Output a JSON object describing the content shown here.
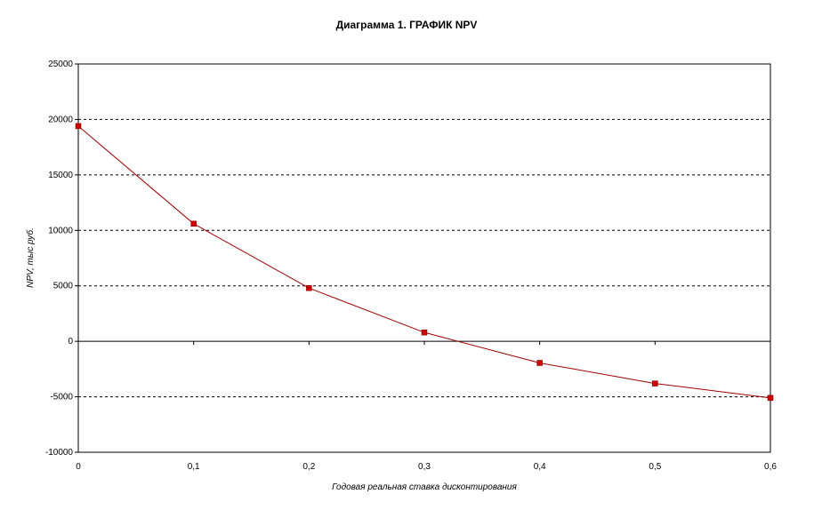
{
  "chart_data": {
    "type": "line",
    "title": "Диаграмма 1. ГРАФИК NPV",
    "xlabel": "Годовая реальная ставка дисконтирования",
    "ylabel": "NPV, тыс руб.",
    "x": [
      0,
      0.1,
      0.2,
      0.3,
      0.4,
      0.5,
      0.6
    ],
    "x_tick_labels": [
      "0",
      "0,1",
      "0,2",
      "0,3",
      "0,4",
      "0,5",
      "0,6"
    ],
    "series": [
      {
        "values": [
          19400,
          10600,
          4800,
          800,
          -1950,
          -3800,
          -5100
        ]
      }
    ],
    "xlim": [
      0,
      0.6
    ],
    "ylim": [
      -10000,
      25000
    ],
    "y_ticks": [
      -10000,
      -5000,
      0,
      5000,
      10000,
      15000,
      20000,
      25000
    ],
    "y_tick_labels": [
      "-10000",
      "-5000",
      "0",
      "5000",
      "10000",
      "15000",
      "20000",
      "25000"
    ],
    "grid": "horizontal dashed",
    "legend": "none",
    "colors": {
      "line": "#a00000",
      "marker": "#cc0000",
      "axis": "#000000"
    }
  }
}
